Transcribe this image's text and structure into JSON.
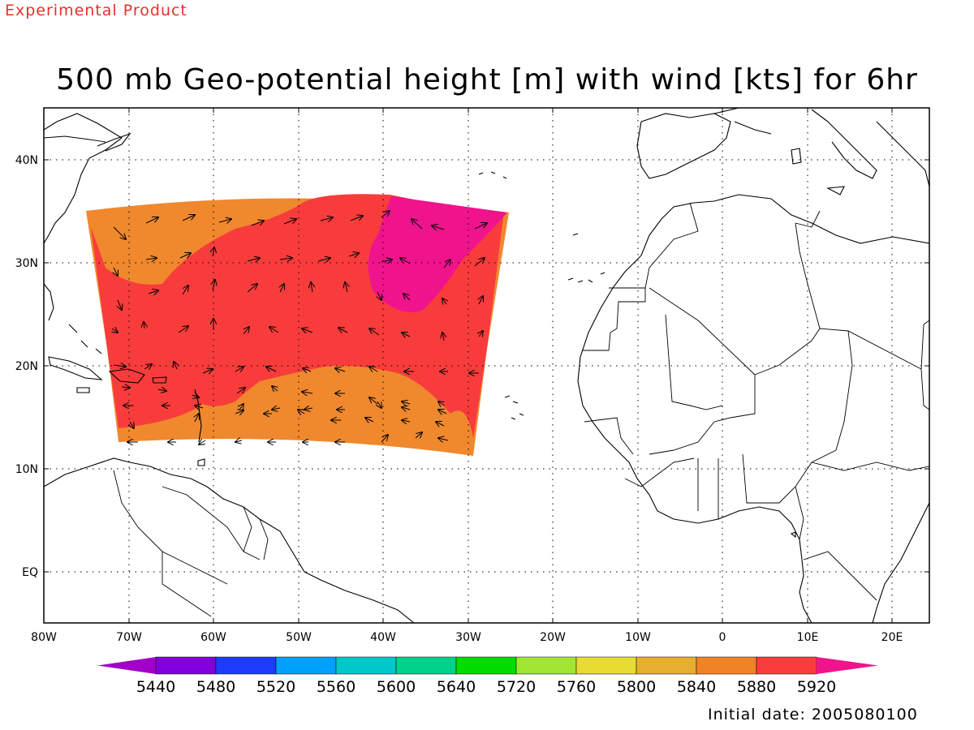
{
  "header": {
    "experimental_label": "Experimental Product",
    "title": "500 mb Geo-potential height [m] with wind [kts] for 6hr"
  },
  "map": {
    "lat_ticks": [
      "40N",
      "30N",
      "20N",
      "10N",
      "EQ"
    ],
    "lon_ticks": [
      "80W",
      "70W",
      "60W",
      "50W",
      "40W",
      "30W",
      "20W",
      "10W",
      "0",
      "10E",
      "20E"
    ],
    "field_colors": {
      "band_5840_5880": "#f0882e",
      "band_5880_5920": "#f83c3c",
      "band_above_5920": "#f0148c"
    }
  },
  "colorbar": {
    "levels": [
      "5440",
      "5480",
      "5520",
      "5560",
      "5600",
      "5640",
      "5720",
      "5760",
      "5800",
      "5840",
      "5880",
      "5920"
    ],
    "colors": [
      "#a000c8",
      "#8200dc",
      "#1e3cff",
      "#00a0ff",
      "#00c8c8",
      "#00d28c",
      "#00dc00",
      "#a0e632",
      "#e6dc32",
      "#e6af2d",
      "#f08228",
      "#fa3c3c",
      "#f0148c"
    ]
  },
  "footer": {
    "initial_date": "Initial date: 2005080100"
  }
}
